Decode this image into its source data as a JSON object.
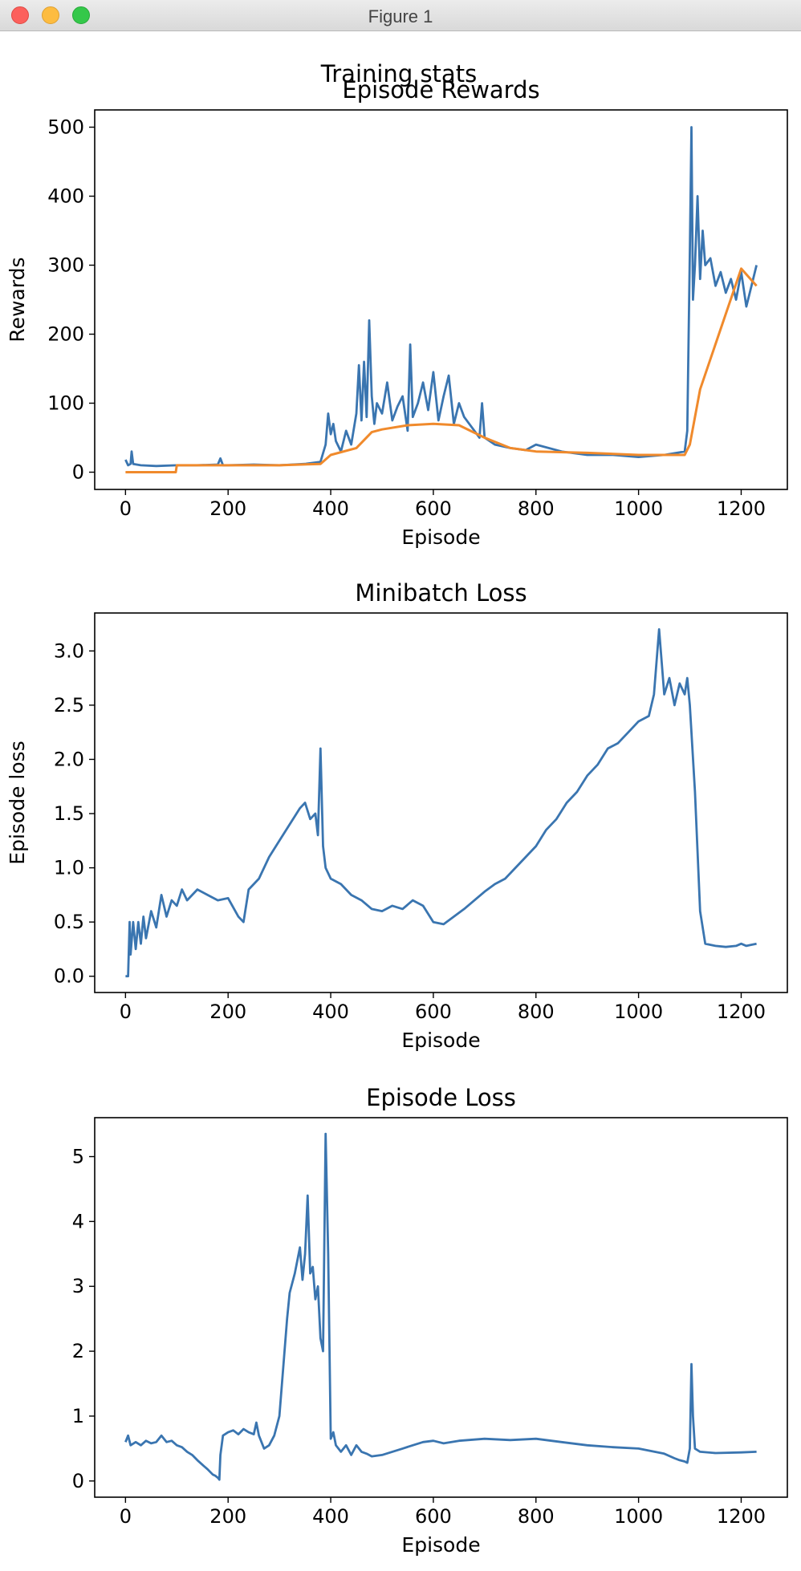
{
  "window": {
    "title": "Figure 1"
  },
  "figure": {
    "suptitle": "Training stats"
  },
  "colors": {
    "series_blue": "#3a75b0",
    "series_orange": "#f08a2c",
    "axis": "#000000"
  },
  "chart_data": [
    {
      "type": "line",
      "title": "Episode Rewards",
      "xlabel": "Episode",
      "ylabel": "Rewards",
      "xlim": [
        -60,
        1290
      ],
      "ylim": [
        -25,
        525
      ],
      "xticks": [
        0,
        200,
        400,
        600,
        800,
        1000,
        1200
      ],
      "yticks": [
        0,
        100,
        200,
        300,
        400,
        500
      ],
      "series": [
        {
          "color": "#3a75b0",
          "x": [
            0,
            5,
            10,
            12,
            15,
            30,
            60,
            100,
            140,
            180,
            185,
            190,
            200,
            250,
            300,
            350,
            380,
            390,
            395,
            400,
            405,
            410,
            420,
            430,
            440,
            450,
            455,
            460,
            465,
            470,
            475,
            480,
            485,
            490,
            500,
            510,
            520,
            530,
            540,
            550,
            555,
            560,
            570,
            580,
            590,
            600,
            610,
            620,
            630,
            640,
            650,
            660,
            670,
            680,
            690,
            695,
            700,
            720,
            750,
            780,
            800,
            850,
            900,
            950,
            1000,
            1050,
            1090,
            1095,
            1100,
            1103,
            1106,
            1110,
            1115,
            1120,
            1125,
            1130,
            1140,
            1150,
            1160,
            1170,
            1180,
            1190,
            1200,
            1210,
            1220,
            1230
          ],
          "y": [
            18,
            10,
            12,
            30,
            12,
            10,
            9,
            10,
            10,
            11,
            20,
            10,
            10,
            11,
            10,
            12,
            15,
            40,
            85,
            55,
            70,
            45,
            30,
            60,
            40,
            85,
            155,
            75,
            160,
            80,
            220,
            110,
            70,
            100,
            85,
            130,
            75,
            95,
            110,
            60,
            185,
            80,
            100,
            130,
            90,
            145,
            75,
            110,
            140,
            70,
            100,
            80,
            70,
            60,
            50,
            100,
            50,
            40,
            35,
            32,
            40,
            30,
            25,
            25,
            22,
            25,
            30,
            60,
            320,
            500,
            250,
            300,
            400,
            280,
            350,
            300,
            310,
            270,
            290,
            260,
            280,
            250,
            290,
            240,
            270,
            300
          ]
        },
        {
          "color": "#f08a2c",
          "x": [
            0,
            98,
            100,
            200,
            300,
            380,
            400,
            450,
            480,
            500,
            550,
            600,
            650,
            700,
            750,
            800,
            900,
            1000,
            1090,
            1100,
            1120,
            1200,
            1230
          ],
          "y": [
            0,
            0,
            10,
            10,
            10,
            12,
            25,
            35,
            58,
            62,
            68,
            70,
            68,
            50,
            35,
            30,
            28,
            25,
            25,
            40,
            120,
            295,
            270
          ]
        }
      ]
    },
    {
      "type": "line",
      "title": "Minibatch Loss",
      "xlabel": "Episode",
      "ylabel": "Episode loss",
      "xlim": [
        -60,
        1290
      ],
      "ylim": [
        -0.15,
        3.35
      ],
      "xticks": [
        0,
        200,
        400,
        600,
        800,
        1000,
        1200
      ],
      "yticks": [
        0.0,
        0.5,
        1.0,
        1.5,
        2.0,
        2.5,
        3.0
      ],
      "ytick_labels": [
        "0.0",
        "0.5",
        "1.0",
        "1.5",
        "2.0",
        "2.5",
        "3.0"
      ],
      "series": [
        {
          "color": "#3a75b0",
          "x": [
            0,
            5,
            8,
            10,
            15,
            20,
            25,
            30,
            35,
            40,
            50,
            60,
            70,
            80,
            90,
            100,
            110,
            120,
            140,
            160,
            180,
            200,
            220,
            230,
            240,
            260,
            280,
            300,
            320,
            340,
            350,
            360,
            370,
            375,
            380,
            385,
            390,
            400,
            420,
            440,
            460,
            480,
            500,
            520,
            540,
            560,
            580,
            600,
            620,
            640,
            660,
            680,
            700,
            720,
            740,
            760,
            780,
            800,
            820,
            840,
            860,
            880,
            900,
            920,
            940,
            960,
            980,
            1000,
            1020,
            1030,
            1040,
            1050,
            1060,
            1070,
            1080,
            1090,
            1095,
            1100,
            1110,
            1120,
            1130,
            1150,
            1170,
            1190,
            1200,
            1210,
            1220,
            1230
          ],
          "y": [
            0,
            0,
            0.5,
            0.2,
            0.5,
            0.25,
            0.5,
            0.3,
            0.55,
            0.35,
            0.6,
            0.45,
            0.75,
            0.55,
            0.7,
            0.65,
            0.8,
            0.7,
            0.8,
            0.75,
            0.7,
            0.72,
            0.55,
            0.5,
            0.8,
            0.9,
            1.1,
            1.25,
            1.4,
            1.55,
            1.6,
            1.45,
            1.5,
            1.3,
            2.1,
            1.2,
            1.0,
            0.9,
            0.85,
            0.75,
            0.7,
            0.62,
            0.6,
            0.65,
            0.62,
            0.7,
            0.65,
            0.5,
            0.48,
            0.55,
            0.62,
            0.7,
            0.78,
            0.85,
            0.9,
            1.0,
            1.1,
            1.2,
            1.35,
            1.45,
            1.6,
            1.7,
            1.85,
            1.95,
            2.1,
            2.15,
            2.25,
            2.35,
            2.4,
            2.6,
            3.2,
            2.6,
            2.75,
            2.5,
            2.7,
            2.6,
            2.75,
            2.5,
            1.7,
            0.6,
            0.3,
            0.28,
            0.27,
            0.28,
            0.3,
            0.28,
            0.29,
            0.3
          ]
        }
      ]
    },
    {
      "type": "line",
      "title": "Episode Loss",
      "xlabel": "Episode",
      "ylabel": "",
      "xlim": [
        -60,
        1290
      ],
      "ylim": [
        -0.25,
        5.6
      ],
      "xticks": [
        0,
        200,
        400,
        600,
        800,
        1000,
        1200
      ],
      "yticks": [
        0,
        1,
        2,
        3,
        4,
        5
      ],
      "series": [
        {
          "color": "#3a75b0",
          "x": [
            0,
            5,
            10,
            20,
            30,
            40,
            50,
            60,
            70,
            80,
            90,
            100,
            110,
            120,
            130,
            140,
            150,
            160,
            170,
            175,
            180,
            183,
            185,
            190,
            200,
            210,
            220,
            230,
            240,
            250,
            255,
            260,
            270,
            280,
            290,
            300,
            305,
            310,
            315,
            320,
            330,
            340,
            345,
            350,
            355,
            360,
            365,
            370,
            375,
            380,
            385,
            390,
            395,
            400,
            405,
            410,
            420,
            430,
            440,
            450,
            460,
            470,
            480,
            500,
            520,
            540,
            560,
            580,
            600,
            620,
            650,
            700,
            750,
            800,
            850,
            900,
            950,
            1000,
            1050,
            1070,
            1080,
            1090,
            1095,
            1100,
            1103,
            1106,
            1110,
            1120,
            1150,
            1200,
            1230
          ],
          "y": [
            0.6,
            0.7,
            0.55,
            0.6,
            0.55,
            0.62,
            0.58,
            0.6,
            0.7,
            0.6,
            0.62,
            0.55,
            0.52,
            0.45,
            0.4,
            0.32,
            0.25,
            0.18,
            0.1,
            0.08,
            0.05,
            0.02,
            0.4,
            0.7,
            0.75,
            0.78,
            0.72,
            0.8,
            0.75,
            0.72,
            0.9,
            0.7,
            0.5,
            0.55,
            0.7,
            1.0,
            1.5,
            2.0,
            2.5,
            2.9,
            3.2,
            3.6,
            3.1,
            3.5,
            4.4,
            3.2,
            3.3,
            2.8,
            3.0,
            2.2,
            2.0,
            5.35,
            3.5,
            0.65,
            0.75,
            0.55,
            0.45,
            0.55,
            0.4,
            0.55,
            0.45,
            0.42,
            0.38,
            0.4,
            0.45,
            0.5,
            0.55,
            0.6,
            0.62,
            0.58,
            0.62,
            0.65,
            0.63,
            0.65,
            0.6,
            0.55,
            0.52,
            0.5,
            0.42,
            0.35,
            0.32,
            0.3,
            0.28,
            0.5,
            1.8,
            1.0,
            0.5,
            0.45,
            0.43,
            0.44,
            0.45
          ]
        }
      ]
    }
  ]
}
